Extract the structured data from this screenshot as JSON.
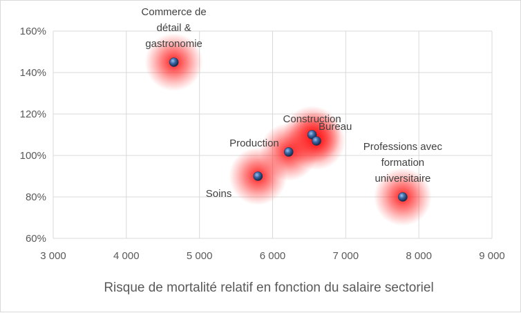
{
  "chart_data": {
    "type": "scatter",
    "title": "",
    "xlabel": "Risque de mortalité relatif en fonction du salaire sectoriel",
    "ylabel": "",
    "xlim": [
      3000,
      9000
    ],
    "ylim": [
      60,
      160
    ],
    "x_ticks": [
      3000,
      4000,
      5000,
      6000,
      7000,
      8000,
      9000
    ],
    "x_tick_labels": [
      "3 000",
      "4 000",
      "5 000",
      "6 000",
      "7 000",
      "8 000",
      "9 000"
    ],
    "y_ticks": [
      60,
      80,
      100,
      120,
      140,
      160
    ],
    "y_tick_labels": [
      "60%",
      "80%",
      "100%",
      "120%",
      "140%",
      "160%"
    ],
    "grid": true,
    "legend": "none",
    "marker_color": "#3b5f8f",
    "glow_color": "#ff0000",
    "points": [
      {
        "label_lines": [
          "Commerce de",
          "détail &",
          "gastronomie"
        ],
        "x": 4650,
        "y": 145,
        "label_pos": "above"
      },
      {
        "label_lines": [
          "Construction"
        ],
        "x": 6540,
        "y": 110,
        "label_pos": "above"
      },
      {
        "label_lines": [
          "Bureau"
        ],
        "x": 6600,
        "y": 107,
        "label_pos": "above-right"
      },
      {
        "label_lines": [
          "Production"
        ],
        "x": 6220,
        "y": 101.7,
        "label_pos": "left"
      },
      {
        "label_lines": [
          "Soins"
        ],
        "x": 5800,
        "y": 90,
        "label_pos": "below-left"
      },
      {
        "label_lines": [
          "Professions avec",
          "formation",
          "universitaire"
        ],
        "x": 7780,
        "y": 80,
        "label_pos": "above"
      }
    ]
  }
}
